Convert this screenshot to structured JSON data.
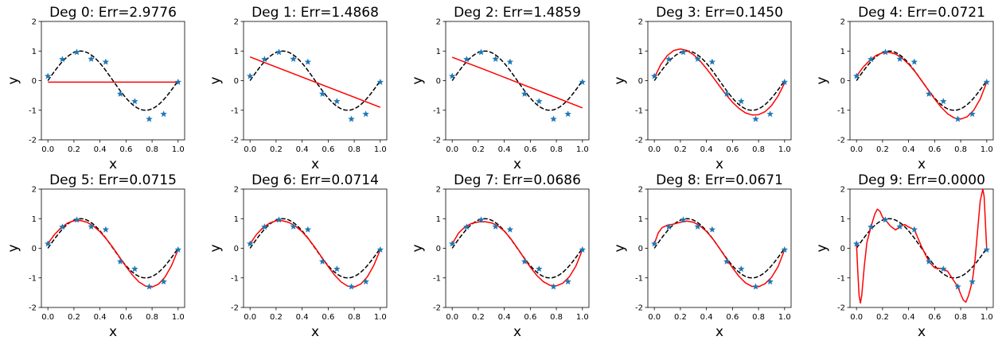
{
  "colors": {
    "fit": "#ff0000",
    "true_curve": "#000000",
    "points": "#1f77b4"
  },
  "chart_data": [
    {
      "type": "line",
      "title": "Deg 0: Err=2.9776",
      "xlabel": "x",
      "ylabel": "y",
      "xlim": [
        -0.05,
        1.05
      ],
      "ylim": [
        -2,
        2
      ],
      "xticks": [
        "0.0",
        "0.2",
        "0.4",
        "0.6",
        "0.8",
        "1.0"
      ],
      "yticks": [
        "-2",
        "-1",
        "0",
        "1",
        "2"
      ],
      "points": {
        "x": [
          0,
          0.111,
          0.222,
          0.333,
          0.444,
          0.556,
          0.667,
          0.778,
          0.889,
          1.0
        ],
        "y": [
          0.15,
          0.72,
          0.96,
          0.73,
          0.63,
          -0.45,
          -0.7,
          -1.3,
          -1.13,
          -0.05
        ]
      },
      "fit": {
        "x": [
          0,
          1
        ],
        "y": [
          -0.05,
          -0.05
        ]
      }
    },
    {
      "type": "line",
      "title": "Deg 1: Err=1.4868",
      "xlabel": "x",
      "ylabel": "y",
      "xlim": [
        -0.05,
        1.05
      ],
      "ylim": [
        -2,
        2
      ],
      "xticks": [
        "0.0",
        "0.2",
        "0.4",
        "0.6",
        "0.8",
        "1.0"
      ],
      "yticks": [
        "-2",
        "-1",
        "0",
        "1",
        "2"
      ],
      "points": {
        "x": [
          0,
          0.111,
          0.222,
          0.333,
          0.444,
          0.556,
          0.667,
          0.778,
          0.889,
          1.0
        ],
        "y": [
          0.15,
          0.72,
          0.96,
          0.73,
          0.63,
          -0.45,
          -0.7,
          -1.3,
          -1.13,
          -0.05
        ]
      },
      "fit": {
        "x": [
          0,
          1
        ],
        "y": [
          0.8,
          -0.9
        ]
      }
    },
    {
      "type": "line",
      "title": "Deg 2: Err=1.4859",
      "xlabel": "x",
      "ylabel": "y",
      "xlim": [
        -0.05,
        1.05
      ],
      "ylim": [
        -2,
        2
      ],
      "xticks": [
        "0.0",
        "0.2",
        "0.4",
        "0.6",
        "0.8",
        "1.0"
      ],
      "yticks": [
        "-2",
        "-1",
        "0",
        "1",
        "2"
      ],
      "points": {
        "x": [
          0,
          0.111,
          0.222,
          0.333,
          0.444,
          0.556,
          0.667,
          0.778,
          0.889,
          1.0
        ],
        "y": [
          0.15,
          0.72,
          0.96,
          0.73,
          0.63,
          -0.45,
          -0.7,
          -1.3,
          -1.13,
          -0.05
        ]
      },
      "fit": {
        "x": [
          0,
          0.25,
          0.5,
          0.75,
          1
        ],
        "y": [
          0.79,
          0.37,
          -0.06,
          -0.49,
          -0.92
        ]
      }
    },
    {
      "type": "line",
      "title": "Deg 3: Err=0.1450",
      "xlabel": "x",
      "ylabel": "y",
      "xlim": [
        -0.05,
        1.05
      ],
      "ylim": [
        -2,
        2
      ],
      "xticks": [
        "0.0",
        "0.2",
        "0.4",
        "0.6",
        "0.8",
        "1.0"
      ],
      "yticks": [
        "-2",
        "-1",
        "0",
        "1",
        "2"
      ],
      "points": {
        "x": [
          0,
          0.111,
          0.222,
          0.333,
          0.444,
          0.556,
          0.667,
          0.778,
          0.889,
          1.0
        ],
        "y": [
          0.15,
          0.72,
          0.96,
          0.73,
          0.63,
          -0.45,
          -0.7,
          -1.3,
          -1.13,
          -0.05
        ]
      },
      "fit": {
        "x": [
          0,
          0.05,
          0.1,
          0.15,
          0.2,
          0.25,
          0.3,
          0.35,
          0.4,
          0.45,
          0.5,
          0.55,
          0.6,
          0.65,
          0.7,
          0.75,
          0.8,
          0.85,
          0.9,
          0.95,
          1.0
        ],
        "y": [
          0.1,
          0.55,
          0.85,
          1.02,
          1.07,
          1.02,
          0.88,
          0.67,
          0.41,
          0.12,
          -0.18,
          -0.47,
          -0.73,
          -0.94,
          -1.09,
          -1.16,
          -1.15,
          -1.05,
          -0.84,
          -0.52,
          -0.08
        ]
      }
    },
    {
      "type": "line",
      "title": "Deg 4: Err=0.0721",
      "xlabel": "x",
      "ylabel": "y",
      "xlim": [
        -0.05,
        1.05
      ],
      "ylim": [
        -2,
        2
      ],
      "xticks": [
        "0.0",
        "0.2",
        "0.4",
        "0.6",
        "0.8",
        "1.0"
      ],
      "yticks": [
        "-2",
        "-1",
        "0",
        "1",
        "2"
      ],
      "points": {
        "x": [
          0,
          0.111,
          0.222,
          0.333,
          0.444,
          0.556,
          0.667,
          0.778,
          0.889,
          1.0
        ],
        "y": [
          0.15,
          0.72,
          0.96,
          0.73,
          0.63,
          -0.45,
          -0.7,
          -1.3,
          -1.13,
          -0.05
        ]
      },
      "fit": {
        "x": [
          0,
          0.05,
          0.1,
          0.15,
          0.2,
          0.25,
          0.3,
          0.35,
          0.4,
          0.45,
          0.5,
          0.55,
          0.6,
          0.65,
          0.7,
          0.75,
          0.8,
          0.85,
          0.9,
          0.95,
          1.0
        ],
        "y": [
          0.15,
          0.45,
          0.68,
          0.85,
          0.94,
          0.96,
          0.9,
          0.76,
          0.56,
          0.3,
          0.0,
          -0.31,
          -0.62,
          -0.9,
          -1.12,
          -1.26,
          -1.3,
          -1.22,
          -1.0,
          -0.62,
          -0.05
        ]
      }
    },
    {
      "type": "line",
      "title": "Deg 5: Err=0.0715",
      "xlabel": "x",
      "ylabel": "y",
      "xlim": [
        -0.05,
        1.05
      ],
      "ylim": [
        -2,
        2
      ],
      "xticks": [
        "0.0",
        "0.2",
        "0.4",
        "0.6",
        "0.8",
        "1.0"
      ],
      "yticks": [
        "-2",
        "-1",
        "0",
        "1",
        "2"
      ],
      "points": {
        "x": [
          0,
          0.111,
          0.222,
          0.333,
          0.444,
          0.556,
          0.667,
          0.778,
          0.889,
          1.0
        ],
        "y": [
          0.15,
          0.72,
          0.96,
          0.73,
          0.63,
          -0.45,
          -0.7,
          -1.3,
          -1.13,
          -0.05
        ]
      },
      "fit": {
        "x": [
          0,
          0.05,
          0.1,
          0.15,
          0.2,
          0.25,
          0.3,
          0.35,
          0.4,
          0.45,
          0.5,
          0.55,
          0.6,
          0.65,
          0.7,
          0.75,
          0.8,
          0.85,
          0.9,
          0.95,
          1.0
        ],
        "y": [
          0.16,
          0.46,
          0.69,
          0.85,
          0.93,
          0.94,
          0.88,
          0.75,
          0.56,
          0.31,
          0.02,
          -0.3,
          -0.62,
          -0.91,
          -1.14,
          -1.28,
          -1.31,
          -1.21,
          -0.97,
          -0.58,
          -0.04
        ]
      }
    },
    {
      "type": "line",
      "title": "Deg 6: Err=0.0714",
      "xlabel": "x",
      "ylabel": "y",
      "xlim": [
        -0.05,
        1.05
      ],
      "ylim": [
        -2,
        2
      ],
      "xticks": [
        "0.0",
        "0.2",
        "0.4",
        "0.6",
        "0.8",
        "1.0"
      ],
      "yticks": [
        "-2",
        "-1",
        "0",
        "1",
        "2"
      ],
      "points": {
        "x": [
          0,
          0.111,
          0.222,
          0.333,
          0.444,
          0.556,
          0.667,
          0.778,
          0.889,
          1.0
        ],
        "y": [
          0.15,
          0.72,
          0.96,
          0.73,
          0.63,
          -0.45,
          -0.7,
          -1.3,
          -1.13,
          -0.05
        ]
      },
      "fit": {
        "x": [
          0,
          0.05,
          0.1,
          0.15,
          0.2,
          0.25,
          0.3,
          0.35,
          0.4,
          0.45,
          0.5,
          0.55,
          0.6,
          0.65,
          0.7,
          0.75,
          0.8,
          0.85,
          0.9,
          0.95,
          1.0
        ],
        "y": [
          0.15,
          0.47,
          0.7,
          0.85,
          0.93,
          0.93,
          0.87,
          0.74,
          0.56,
          0.31,
          0.02,
          -0.3,
          -0.62,
          -0.91,
          -1.14,
          -1.28,
          -1.31,
          -1.21,
          -0.97,
          -0.58,
          -0.05
        ]
      }
    },
    {
      "type": "line",
      "title": "Deg 7: Err=0.0686",
      "xlabel": "x",
      "ylabel": "y",
      "xlim": [
        -0.05,
        1.05
      ],
      "ylim": [
        -2,
        2
      ],
      "xticks": [
        "0.0",
        "0.2",
        "0.4",
        "0.6",
        "0.8",
        "1.0"
      ],
      "yticks": [
        "-2",
        "-1",
        "0",
        "1",
        "2"
      ],
      "points": {
        "x": [
          0,
          0.111,
          0.222,
          0.333,
          0.444,
          0.556,
          0.667,
          0.778,
          0.889,
          1.0
        ],
        "y": [
          0.15,
          0.72,
          0.96,
          0.73,
          0.63,
          -0.45,
          -0.7,
          -1.3,
          -1.13,
          -0.05
        ]
      },
      "fit": {
        "x": [
          0,
          0.05,
          0.1,
          0.15,
          0.2,
          0.25,
          0.3,
          0.35,
          0.4,
          0.45,
          0.5,
          0.55,
          0.6,
          0.65,
          0.7,
          0.75,
          0.8,
          0.85,
          0.9,
          0.95,
          1.0
        ],
        "y": [
          0.15,
          0.52,
          0.73,
          0.84,
          0.89,
          0.9,
          0.86,
          0.76,
          0.58,
          0.32,
          0.01,
          -0.32,
          -0.64,
          -0.92,
          -1.13,
          -1.25,
          -1.27,
          -1.18,
          -0.96,
          -0.6,
          -0.05
        ]
      }
    },
    {
      "type": "line",
      "title": "Deg 8: Err=0.0671",
      "xlabel": "x",
      "ylabel": "y",
      "xlim": [
        -0.05,
        1.05
      ],
      "ylim": [
        -2,
        2
      ],
      "xticks": [
        "0.0",
        "0.2",
        "0.4",
        "0.6",
        "0.8",
        "1.0"
      ],
      "yticks": [
        "-2",
        "-1",
        "0",
        "1",
        "2"
      ],
      "points": {
        "x": [
          0,
          0.111,
          0.222,
          0.333,
          0.444,
          0.556,
          0.667,
          0.778,
          0.889,
          1.0
        ],
        "y": [
          0.15,
          0.72,
          0.96,
          0.73,
          0.63,
          -0.45,
          -0.7,
          -1.3,
          -1.13,
          -0.05
        ]
      },
      "fit": {
        "x": [
          0,
          0.03,
          0.06,
          0.1,
          0.15,
          0.2,
          0.25,
          0.3,
          0.35,
          0.4,
          0.45,
          0.5,
          0.55,
          0.6,
          0.65,
          0.7,
          0.75,
          0.8,
          0.85,
          0.9,
          0.95,
          1.0
        ],
        "y": [
          0.15,
          0.52,
          0.7,
          0.78,
          0.82,
          0.88,
          0.92,
          0.88,
          0.76,
          0.57,
          0.31,
          0.0,
          -0.33,
          -0.66,
          -0.95,
          -1.17,
          -1.29,
          -1.3,
          -1.2,
          -0.98,
          -0.62,
          -0.05
        ]
      }
    },
    {
      "type": "line",
      "title": "Deg 9: Err=0.0000",
      "xlabel": "x",
      "ylabel": "y",
      "xlim": [
        -0.05,
        1.05
      ],
      "ylim": [
        -2,
        2
      ],
      "xticks": [
        "0.0",
        "0.2",
        "0.4",
        "0.6",
        "0.8",
        "1.0"
      ],
      "yticks": [
        "-2",
        "-1",
        "0",
        "1",
        "2"
      ],
      "points": {
        "x": [
          0,
          0.111,
          0.222,
          0.333,
          0.444,
          0.556,
          0.667,
          0.778,
          0.889,
          1.0
        ],
        "y": [
          0.15,
          0.72,
          0.96,
          0.73,
          0.63,
          -0.45,
          -0.7,
          -1.3,
          -1.13,
          -0.05
        ]
      },
      "fit": {
        "x": [
          0,
          0.01,
          0.02,
          0.03,
          0.04,
          0.06,
          0.08,
          0.111,
          0.14,
          0.16,
          0.18,
          0.2,
          0.222,
          0.26,
          0.3,
          0.333,
          0.37,
          0.4,
          0.444,
          0.5,
          0.556,
          0.6,
          0.64,
          0.667,
          0.7,
          0.74,
          0.778,
          0.8,
          0.82,
          0.84,
          0.86,
          0.889,
          0.91,
          0.93,
          0.95,
          0.97,
          0.98,
          0.99,
          1.0
        ],
        "y": [
          0.15,
          -0.8,
          -1.6,
          -1.85,
          -1.6,
          -0.6,
          0.2,
          0.72,
          1.15,
          1.32,
          1.25,
          1.05,
          0.96,
          0.75,
          0.62,
          0.73,
          0.8,
          0.72,
          0.63,
          0.05,
          -0.45,
          -0.66,
          -0.68,
          -0.7,
          -0.78,
          -1.05,
          -1.3,
          -1.55,
          -1.75,
          -1.82,
          -1.6,
          -1.13,
          -0.4,
          0.6,
          1.6,
          2.0,
          1.75,
          0.85,
          -0.05
        ]
      }
    }
  ]
}
